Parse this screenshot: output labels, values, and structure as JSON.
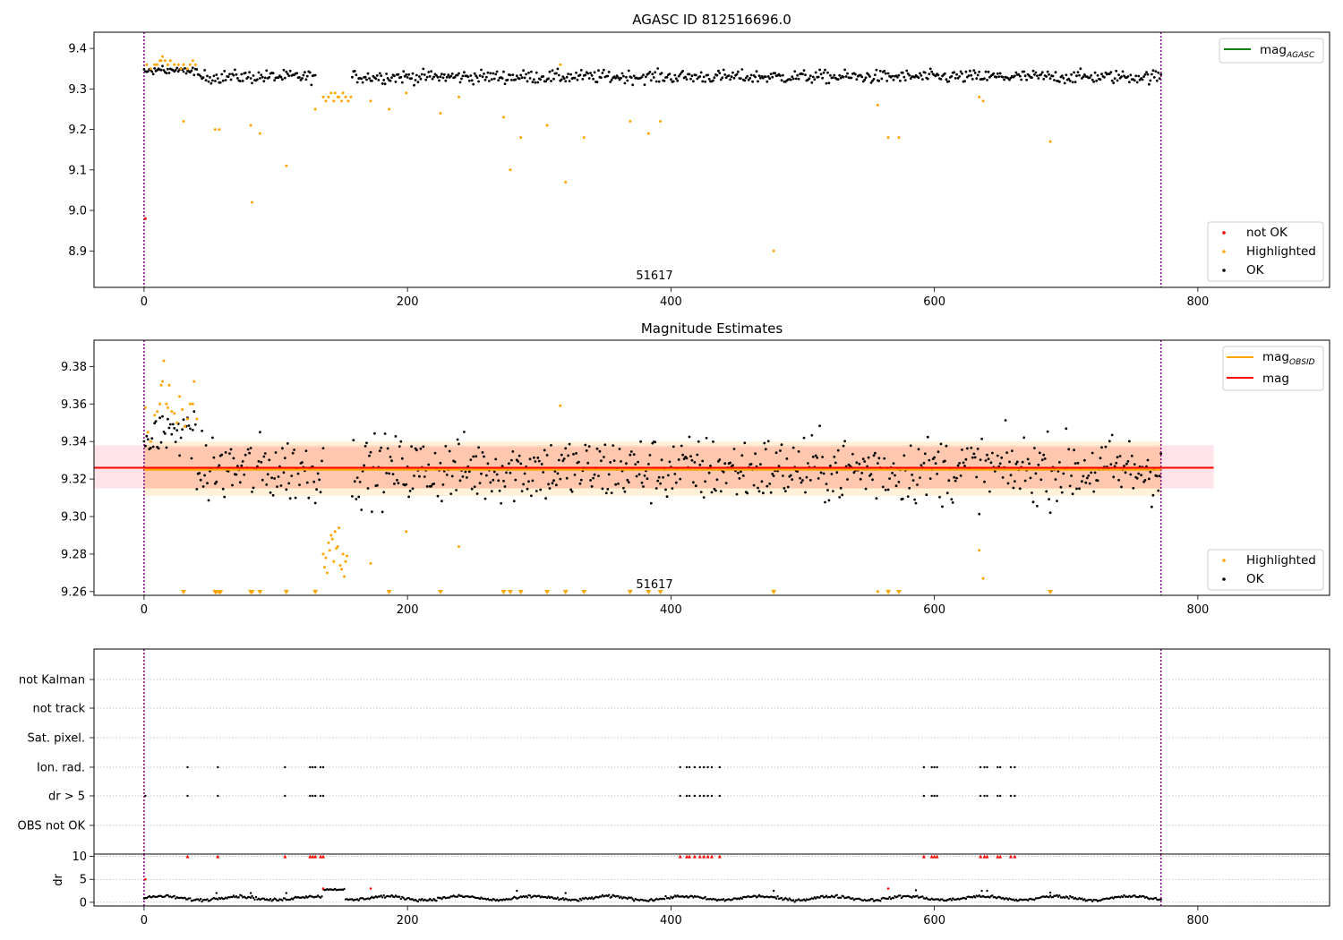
{
  "chart_data": [
    {
      "type": "scatter",
      "title": "AGASC ID 812516696.0",
      "xlim": [
        -38,
        900
      ],
      "ylim": [
        8.81,
        9.44
      ],
      "xticks": [
        0,
        200,
        400,
        600,
        800
      ],
      "yticks": [
        8.9,
        9.0,
        9.1,
        9.2,
        9.3,
        9.4
      ],
      "vlines": [
        0,
        772
      ],
      "obsid_label": "51617",
      "obsid_label_x": 386,
      "reference_line": {
        "name": "mag_AGASC",
        "color": "#008000"
      },
      "legend_top": [
        {
          "label": "mag",
          "subscript": "AGASC",
          "kind": "line",
          "color": "#008000"
        }
      ],
      "legend_bottom": [
        {
          "label": "not OK",
          "kind": "point",
          "color": "#ff0000"
        },
        {
          "label": "Highlighted",
          "kind": "point",
          "color": "#ffa500"
        },
        {
          "label": "OK",
          "kind": "point",
          "color": "#000000"
        }
      ],
      "series": {
        "ok_baseline": {
          "x_range": [
            0,
            772
          ],
          "center": 9.33,
          "gap": [
            130,
            158
          ],
          "color": "#000000"
        },
        "highlighted": {
          "color": "#ffa500",
          "points": [
            [
              2,
              9.36
            ],
            [
              5,
              9.35
            ],
            [
              8,
              9.36
            ],
            [
              10,
              9.36
            ],
            [
              12,
              9.37
            ],
            [
              13,
              9.37
            ],
            [
              14,
              9.38
            ],
            [
              16,
              9.37
            ],
            [
              18,
              9.36
            ],
            [
              20,
              9.37
            ],
            [
              23,
              9.36
            ],
            [
              26,
              9.36
            ],
            [
              28,
              9.35
            ],
            [
              30,
              9.36
            ],
            [
              33,
              9.35
            ],
            [
              35,
              9.36
            ],
            [
              37,
              9.37
            ],
            [
              39,
              9.36
            ],
            [
              30,
              9.22
            ],
            [
              54,
              9.2
            ],
            [
              57,
              9.2
            ],
            [
              81,
              9.21
            ],
            [
              82,
              9.02
            ],
            [
              88,
              9.19
            ],
            [
              108,
              9.11
            ],
            [
              130,
              9.25
            ],
            [
              136,
              9.28
            ],
            [
              138,
              9.27
            ],
            [
              140,
              9.28
            ],
            [
              142,
              9.29
            ],
            [
              144,
              9.27
            ],
            [
              145,
              9.29
            ],
            [
              147,
              9.28
            ],
            [
              148,
              9.28
            ],
            [
              150,
              9.27
            ],
            [
              151,
              9.29
            ],
            [
              153,
              9.28
            ],
            [
              155,
              9.27
            ],
            [
              157,
              9.28
            ],
            [
              172,
              9.27
            ],
            [
              186,
              9.25
            ],
            [
              199,
              9.29
            ],
            [
              225,
              9.24
            ],
            [
              239,
              9.28
            ],
            [
              273,
              9.23
            ],
            [
              278,
              9.1
            ],
            [
              286,
              9.18
            ],
            [
              306,
              9.21
            ],
            [
              316,
              9.36
            ],
            [
              320,
              9.07
            ],
            [
              334,
              9.18
            ],
            [
              369,
              9.22
            ],
            [
              383,
              9.19
            ],
            [
              392,
              9.22
            ],
            [
              478,
              8.9
            ],
            [
              557,
              9.26
            ],
            [
              565,
              9.18
            ],
            [
              573,
              9.18
            ],
            [
              634,
              9.28
            ],
            [
              637,
              9.27
            ],
            [
              688,
              9.17
            ]
          ]
        },
        "not_ok": {
          "color": "#ff0000",
          "points": [
            [
              1,
              8.98
            ]
          ]
        }
      }
    },
    {
      "type": "scatter",
      "title": "Magnitude Estimates",
      "xlim": [
        -38,
        900
      ],
      "ylim": [
        9.258,
        9.394
      ],
      "xticks": [
        0,
        200,
        400,
        600,
        800
      ],
      "yticks": [
        9.26,
        9.28,
        9.3,
        9.32,
        9.34,
        9.36,
        9.38
      ],
      "ytick_labels": [
        "9.26",
        "9.28",
        "9.30",
        "9.32",
        "9.34",
        "9.36",
        "9.38"
      ],
      "vlines": [
        0,
        772
      ],
      "obsid_label": "51617",
      "obsid_label_x": 386,
      "mag_line": {
        "value": 9.326,
        "x_range": [
          -38,
          812
        ],
        "band": [
          9.315,
          9.338
        ],
        "color": "#ff0000"
      },
      "mag_obsid_line": {
        "value": 9.325,
        "x_range": [
          0,
          772
        ],
        "band_outer": [
          9.311,
          9.34
        ],
        "band_inner": [
          9.315,
          9.337
        ],
        "color": "#ffa500"
      },
      "legend_top": [
        {
          "label": "mag",
          "subscript": "OBSID",
          "kind": "line",
          "color": "#ffa500"
        },
        {
          "label": "mag",
          "kind": "line",
          "color": "#ff0000"
        }
      ],
      "legend_bottom": [
        {
          "label": "Highlighted",
          "kind": "point",
          "color": "#ffa500"
        },
        {
          "label": "OK",
          "kind": "point",
          "color": "#000000"
        }
      ],
      "series": {
        "ok_baseline": {
          "x_range": [
            0,
            772
          ],
          "center": 9.325,
          "gap": [
            136,
            158
          ],
          "color": "#000000"
        },
        "highlighted": {
          "color": "#ffa500",
          "points": [
            [
              1,
              9.358
            ],
            [
              3,
              9.345
            ],
            [
              5,
              9.34
            ],
            [
              8,
              9.354
            ],
            [
              10,
              9.356
            ],
            [
              12,
              9.36
            ],
            [
              13,
              9.37
            ],
            [
              14,
              9.372
            ],
            [
              15,
              9.383
            ],
            [
              17,
              9.36
            ],
            [
              18,
              9.358
            ],
            [
              19,
              9.37
            ],
            [
              21,
              9.356
            ],
            [
              23,
              9.355
            ],
            [
              25,
              9.35
            ],
            [
              27,
              9.364
            ],
            [
              29,
              9.357
            ],
            [
              31,
              9.348
            ],
            [
              33,
              9.352
            ],
            [
              35,
              9.36
            ],
            [
              37,
              9.36
            ],
            [
              38,
              9.372
            ],
            [
              40,
              9.352
            ],
            [
              136,
              9.28
            ],
            [
              137,
              9.273
            ],
            [
              138,
              9.278
            ],
            [
              139,
              9.27
            ],
            [
              140,
              9.286
            ],
            [
              141,
              9.282
            ],
            [
              142,
              9.29
            ],
            [
              143,
              9.288
            ],
            [
              144,
              9.276
            ],
            [
              145,
              9.292
            ],
            [
              146,
              9.283
            ],
            [
              147,
              9.284
            ],
            [
              148,
              9.294
            ],
            [
              149,
              9.274
            ],
            [
              150,
              9.272
            ],
            [
              151,
              9.28
            ],
            [
              152,
              9.268
            ],
            [
              153,
              9.276
            ],
            [
              154,
              9.279
            ],
            [
              172,
              9.275
            ],
            [
              199,
              9.292
            ],
            [
              239,
              9.284
            ],
            [
              316,
              9.359
            ],
            [
              557,
              9.26
            ],
            [
              634,
              9.282
            ],
            [
              637,
              9.267
            ]
          ]
        },
        "clipped_markers": {
          "color": "#ffa500",
          "x": [
            30,
            54,
            55,
            57,
            58,
            81,
            82,
            88,
            108,
            130,
            186,
            225,
            273,
            278,
            286,
            306,
            320,
            334,
            369,
            383,
            392,
            478,
            565,
            573,
            688
          ]
        }
      }
    },
    {
      "type": "scatter",
      "title": "",
      "xlim": [
        -38,
        900
      ],
      "xticks": [
        0,
        200,
        400,
        600,
        800
      ],
      "vlines": [
        0,
        772
      ],
      "flag_rows": [
        "not Kalman",
        "not track",
        "Sat. pixel.",
        "Ion. rad.",
        "dr > 5",
        "OBS not OK"
      ],
      "flags": {
        "Ion. rad.": [
          33,
          56,
          107,
          126,
          128,
          130,
          134,
          136,
          407,
          412,
          414,
          418,
          422,
          425,
          428,
          431,
          437,
          592,
          598,
          600,
          602,
          635,
          638,
          640,
          648,
          650,
          658,
          661
        ],
        "dr > 5": [
          1,
          33,
          56,
          107,
          126,
          128,
          130,
          134,
          136,
          407,
          412,
          414,
          418,
          422,
          425,
          428,
          431,
          437,
          592,
          598,
          600,
          602,
          635,
          638,
          640,
          648,
          650,
          658,
          661
        ]
      },
      "dr_panel": {
        "ylabel": "dr",
        "yticks": [
          0,
          5,
          10
        ],
        "ylim": [
          -0.8,
          10.5
        ],
        "threshold": 5,
        "points_above": {
          "color": "#ff0000",
          "value": 10,
          "x": [
            33,
            56,
            107,
            126,
            128,
            130,
            134,
            136,
            407,
            412,
            414,
            418,
            422,
            425,
            428,
            431,
            437,
            592,
            598,
            600,
            602,
            635,
            638,
            640,
            648,
            650,
            658,
            661
          ]
        },
        "red_small": [
          [
            1,
            5
          ],
          [
            136,
            3
          ],
          [
            172,
            3
          ],
          [
            565,
            3
          ]
        ],
        "elevated_segment": {
          "x_range": [
            136,
            152
          ],
          "value": 2.8
        },
        "extra_black": [
          [
            55,
            2
          ],
          [
            81,
            2
          ],
          [
            108,
            2
          ],
          [
            283,
            2.5
          ],
          [
            320,
            2
          ],
          [
            478,
            2.5
          ],
          [
            586,
            2.6
          ],
          [
            636,
            2.5
          ],
          [
            640,
            2.5
          ],
          [
            688,
            2.1
          ]
        ]
      }
    }
  ]
}
